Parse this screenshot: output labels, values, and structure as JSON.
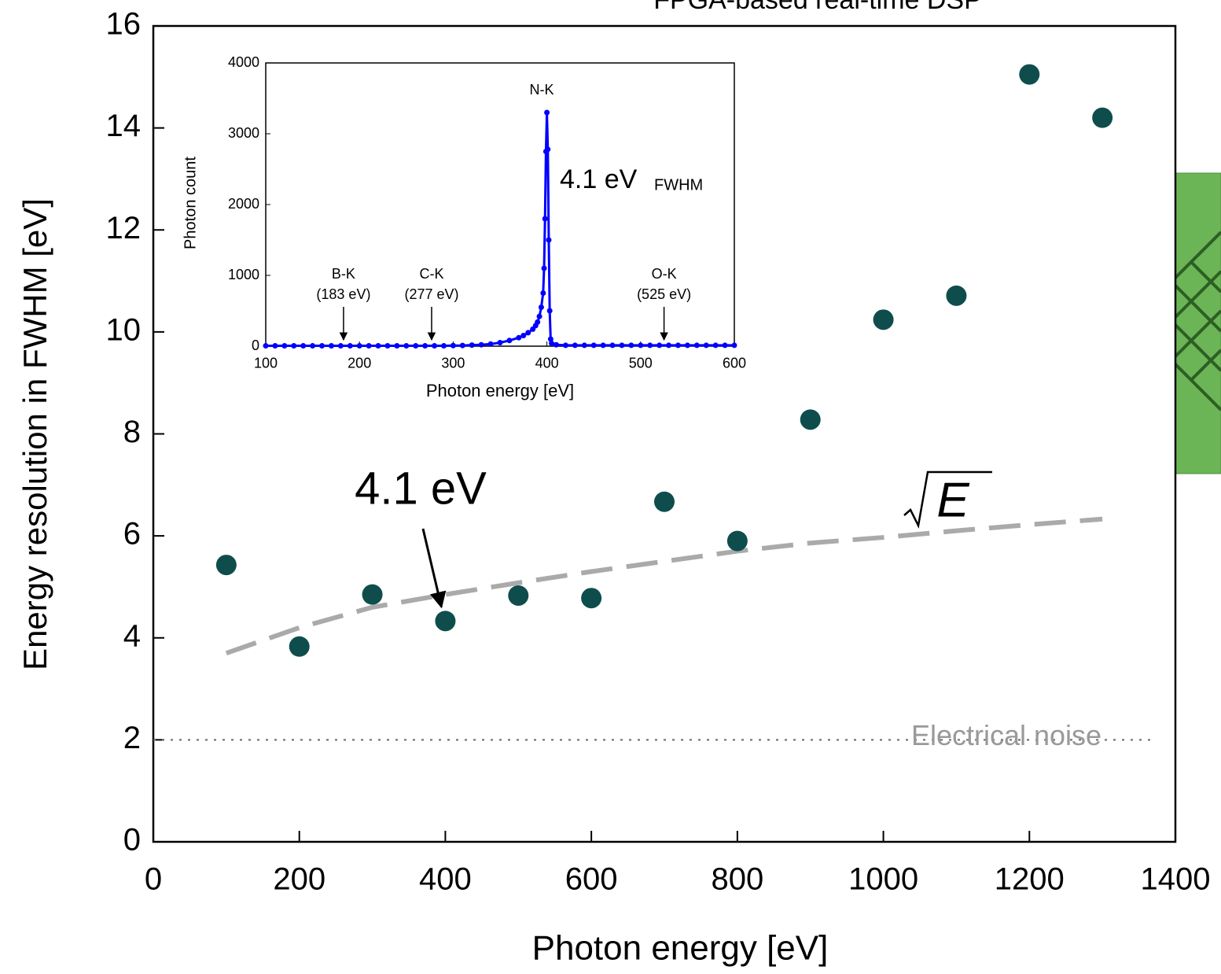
{
  "chart_data": [
    {
      "type": "scatter",
      "title": "FPGA-based real-time DSP",
      "xlabel": "Photon energy [eV]",
      "ylabel": "Energy resolution in FWHM [eV]",
      "x": [
        100,
        200,
        300,
        400,
        500,
        600,
        700,
        800,
        900,
        1000,
        1100,
        1200,
        1300
      ],
      "values": [
        5.43,
        3.83,
        4.85,
        4.33,
        4.83,
        4.78,
        6.67,
        5.9,
        8.28,
        10.24,
        10.71,
        15.05,
        14.2
      ],
      "color": "#0f4d4d",
      "xlim": [
        0,
        1400
      ],
      "ylim": [
        0,
        16
      ],
      "xticks": [
        0,
        200,
        400,
        600,
        800,
        1000,
        1200,
        1400
      ],
      "yticks": [
        0,
        2,
        4,
        6,
        8,
        10,
        12,
        14,
        16
      ],
      "fit": {
        "x": [
          100,
          200,
          300,
          400,
          500,
          600,
          700,
          800,
          900,
          1000,
          1100,
          1200,
          1300
        ],
        "values": [
          3.7,
          4.2,
          4.6,
          4.85,
          5.08,
          5.3,
          5.5,
          5.7,
          5.86,
          5.97,
          6.1,
          6.22,
          6.33
        ],
        "label": "E",
        "color": "#aaaaaa"
      },
      "reference_line": {
        "value": 2,
        "label": "Electrical noise"
      },
      "annotation": "4.1 eV"
    },
    {
      "type": "scatter",
      "xlabel": "Photon energy [eV]",
      "ylabel": "Photon count",
      "x": [
        100,
        110,
        120,
        130,
        140,
        150,
        160,
        170,
        180,
        190,
        200,
        210,
        220,
        230,
        240,
        250,
        260,
        270,
        280,
        290,
        300,
        310,
        320,
        330,
        340,
        350,
        360,
        370,
        375,
        380,
        385,
        388,
        390,
        392,
        394,
        396,
        397,
        398,
        399,
        400,
        401,
        402,
        403,
        404,
        405,
        410,
        420,
        430,
        440,
        450,
        460,
        470,
        480,
        490,
        500,
        510,
        520,
        530,
        540,
        550,
        560,
        570,
        580,
        590,
        600
      ],
      "values": [
        5,
        5,
        5,
        5,
        5,
        5,
        5,
        5,
        5,
        5,
        5,
        5,
        5,
        5,
        5,
        5,
        5,
        5,
        5,
        5,
        8,
        10,
        15,
        20,
        30,
        50,
        80,
        120,
        150,
        190,
        240,
        290,
        340,
        420,
        550,
        750,
        1100,
        1800,
        2750,
        3300,
        2780,
        1500,
        500,
        100,
        40,
        20,
        12,
        12,
        12,
        12,
        12,
        12,
        12,
        12,
        12,
        12,
        12,
        12,
        12,
        12,
        12,
        12,
        12,
        12,
        12
      ],
      "color": "#0000ff",
      "xlim": [
        100,
        600
      ],
      "ylim": [
        0,
        4000
      ],
      "xticks": [
        100,
        200,
        300,
        400,
        500,
        600
      ],
      "yticks": [
        0,
        1000,
        2000,
        3000,
        4000
      ],
      "peak_label": "N-K",
      "fwhm_label": "4.1 eV",
      "fwhm_unit": "FWHM",
      "edges": [
        {
          "label": "B-K",
          "energy": 183,
          "energy_label": "(183 eV)"
        },
        {
          "label": "C-K",
          "energy": 277,
          "energy_label": "(277 eV)"
        },
        {
          "label": "O-K",
          "energy": 525,
          "energy_label": "(525 eV)"
        }
      ]
    }
  ]
}
